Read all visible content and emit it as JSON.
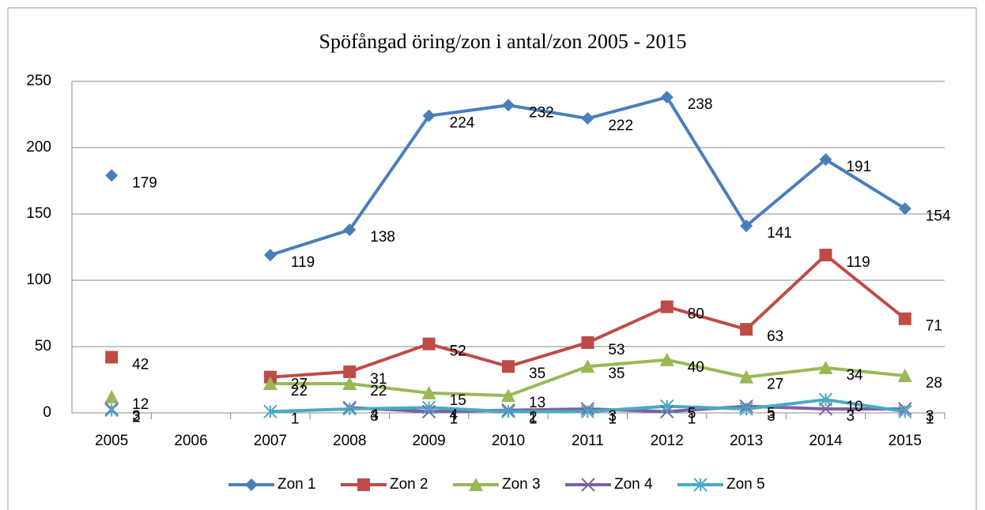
{
  "chart_data": {
    "type": "line",
    "title": "Spöfångad öring/zon i antal/zon 2005 - 2015",
    "categories": [
      "2005",
      "2006",
      "2007",
      "2008",
      "2009",
      "2010",
      "2011",
      "2012",
      "2013",
      "2014",
      "2015"
    ],
    "series": [
      {
        "name": "Zon 1",
        "color": "#4a7ebb",
        "marker": "diamond",
        "values": [
          179,
          null,
          119,
          138,
          224,
          232,
          222,
          238,
          141,
          191,
          154
        ]
      },
      {
        "name": "Zon 2",
        "color": "#be4b48",
        "marker": "square",
        "values": [
          42,
          null,
          27,
          31,
          52,
          35,
          53,
          80,
          63,
          119,
          71
        ]
      },
      {
        "name": "Zon 3",
        "color": "#98b954",
        "marker": "triangle",
        "values": [
          12,
          null,
          22,
          22,
          15,
          13,
          35,
          40,
          27,
          34,
          28
        ]
      },
      {
        "name": "Zon 4",
        "color": "#7d60a0",
        "marker": "x",
        "values": [
          3,
          null,
          null,
          4,
          1,
          2,
          3,
          1,
          5,
          3,
          3
        ]
      },
      {
        "name": "Zon 5",
        "color": "#46aac5",
        "marker": "star",
        "values": [
          2,
          null,
          1,
          3,
          4,
          1,
          1,
          5,
          3,
          10,
          1
        ]
      }
    ],
    "ylim": [
      0,
      250
    ],
    "yticks": [
      0,
      50,
      100,
      150,
      200,
      250
    ],
    "grid": true,
    "legend": "bottom"
  }
}
